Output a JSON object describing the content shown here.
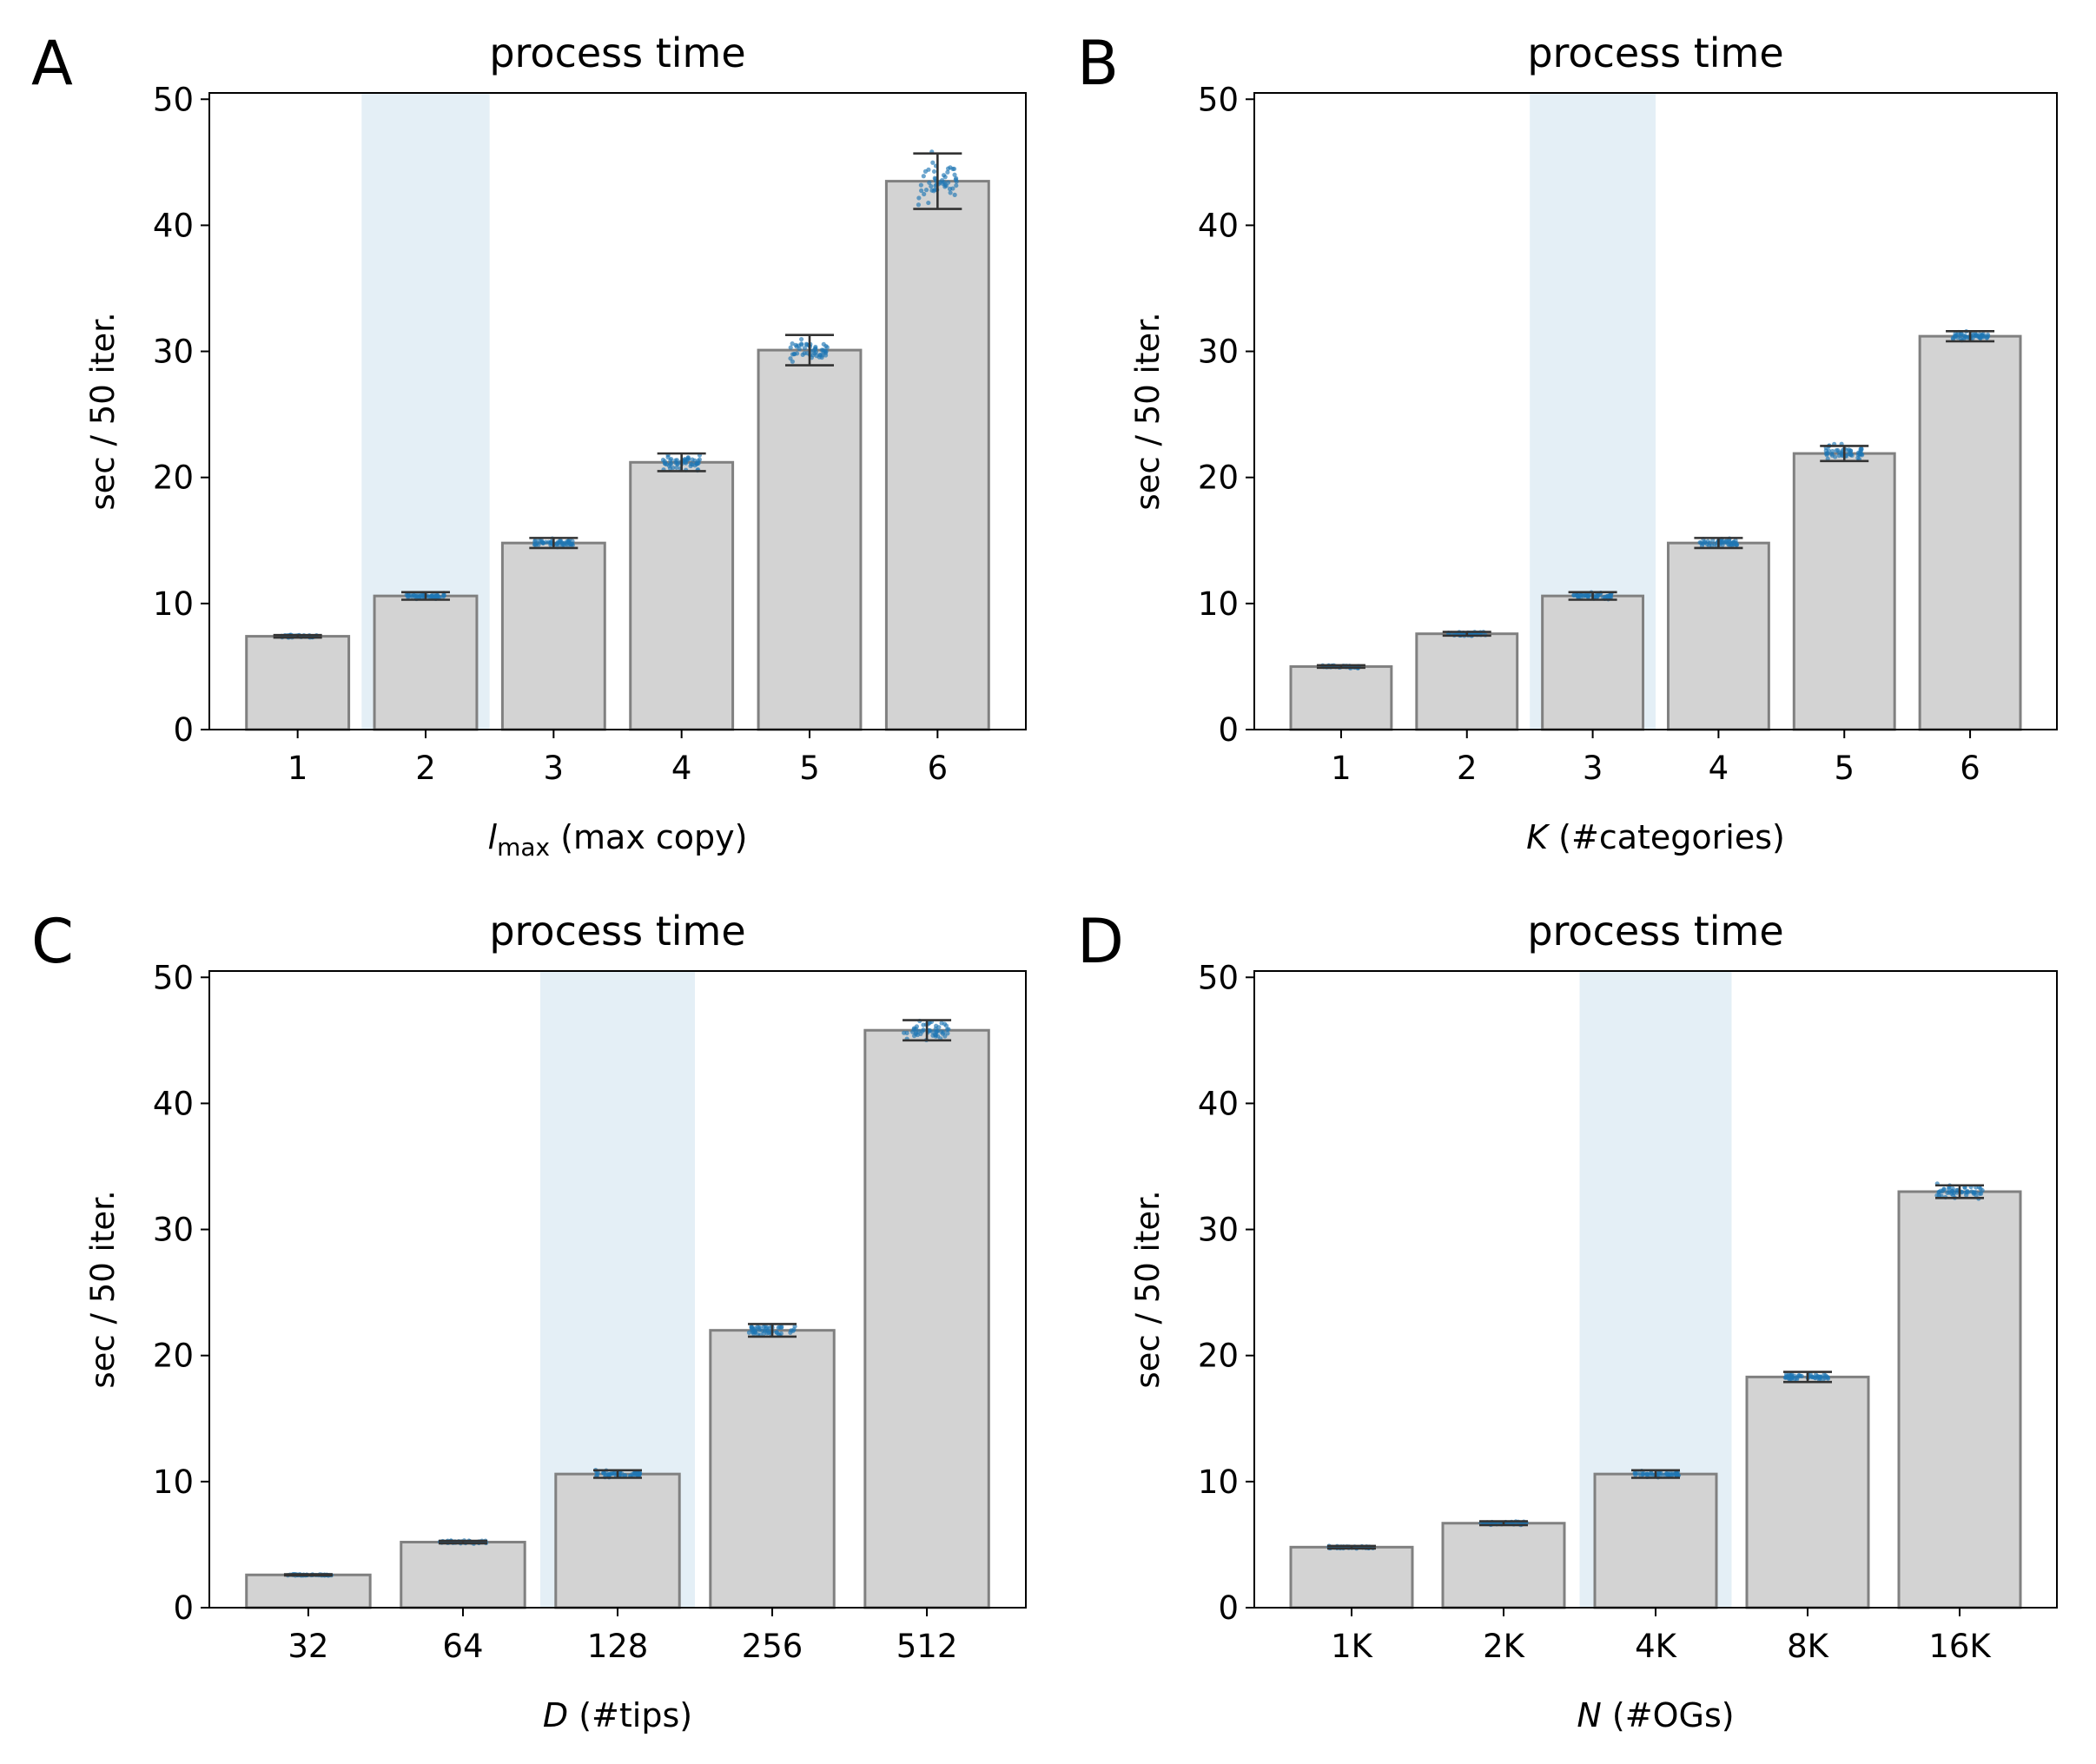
{
  "figure": {
    "panels": [
      {
        "letter": "A",
        "title": "process time",
        "ylabel": "sec / 50 iter."
      },
      {
        "letter": "B",
        "title": "process time",
        "ylabel": "sec / 50 iter."
      },
      {
        "letter": "C",
        "title": "process time",
        "ylabel": "sec / 50 iter."
      },
      {
        "letter": "D",
        "title": "process time",
        "ylabel": "sec / 50 iter."
      }
    ]
  },
  "colors": {
    "bar_fill": "#d3d3d3",
    "bar_edge": "#808080",
    "highlight": "#e4eff6",
    "points": "#1f77b4",
    "errorbar": "#333333"
  },
  "chart_data": [
    {
      "type": "bar",
      "panel": "A",
      "title": "process time",
      "xlabel": "l_max (max copy)",
      "xlabel_parts": {
        "italic": "l",
        "sub": "max",
        "rest": " (max copy)"
      },
      "ylabel": "sec / 50 iter.",
      "ylim": [
        0,
        50.5
      ],
      "yticks": [
        0,
        10,
        20,
        30,
        40,
        50
      ],
      "categories": [
        "1",
        "2",
        "3",
        "4",
        "5",
        "6"
      ],
      "values": [
        7.4,
        10.6,
        14.8,
        21.2,
        30.1,
        43.5
      ],
      "error": [
        0.1,
        0.3,
        0.4,
        0.7,
        1.2,
        2.2
      ],
      "highlight_index": 1,
      "scatter_spread": [
        0.2,
        0.4,
        0.6,
        1.1,
        1.6,
        3.5
      ],
      "grid": false
    },
    {
      "type": "bar",
      "panel": "B",
      "title": "process time",
      "xlabel": "K (#categories)",
      "xlabel_parts": {
        "italic": "K",
        "sub": "",
        "rest": " (#categories)"
      },
      "ylabel": "sec / 50 iter.",
      "ylim": [
        0,
        50.5
      ],
      "yticks": [
        0,
        10,
        20,
        30,
        40,
        50
      ],
      "categories": [
        "1",
        "2",
        "3",
        "4",
        "5",
        "6"
      ],
      "values": [
        5.0,
        7.6,
        10.6,
        14.8,
        21.9,
        31.2
      ],
      "error": [
        0.1,
        0.15,
        0.3,
        0.4,
        0.6,
        0.4
      ],
      "highlight_index": 2,
      "scatter_spread": [
        0.2,
        0.3,
        0.5,
        0.6,
        1.2,
        0.6
      ],
      "grid": false
    },
    {
      "type": "bar",
      "panel": "C",
      "title": "process time",
      "xlabel": "D (#tips)",
      "xlabel_parts": {
        "italic": "D",
        "sub": "",
        "rest": " (#tips)"
      },
      "ylabel": "sec / 50 iter.",
      "ylim": [
        0,
        50.5
      ],
      "yticks": [
        0,
        10,
        20,
        30,
        40,
        50
      ],
      "categories": [
        "32",
        "64",
        "128",
        "256",
        "512"
      ],
      "values": [
        2.6,
        5.2,
        10.6,
        22.0,
        45.8
      ],
      "error": [
        0.05,
        0.1,
        0.3,
        0.5,
        0.8
      ],
      "highlight_index": 2,
      "scatter_spread": [
        0.1,
        0.2,
        0.5,
        0.8,
        1.3
      ],
      "grid": false
    },
    {
      "type": "bar",
      "panel": "D",
      "title": "process time",
      "xlabel": "N (#OGs)",
      "xlabel_parts": {
        "italic": "N",
        "sub": "",
        "rest": " (#OGs)"
      },
      "ylabel": "sec / 50 iter.",
      "ylim": [
        0,
        50.5
      ],
      "yticks": [
        0,
        10,
        20,
        30,
        40,
        50
      ],
      "categories": [
        "1K",
        "2K",
        "4K",
        "8K",
        "16K"
      ],
      "values": [
        4.8,
        6.7,
        10.6,
        18.3,
        33.0
      ],
      "error": [
        0.1,
        0.15,
        0.3,
        0.4,
        0.5
      ],
      "highlight_index": 2,
      "scatter_spread": [
        0.2,
        0.3,
        0.5,
        0.5,
        1.1
      ],
      "grid": false
    }
  ]
}
